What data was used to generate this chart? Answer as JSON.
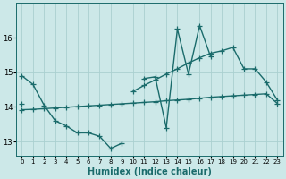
{
  "xlabel": "Humidex (Indice chaleur)",
  "ylabel": "",
  "xlim": [
    -0.5,
    23.5
  ],
  "ylim": [
    12.6,
    17.0
  ],
  "yticks": [
    13,
    14,
    15,
    16
  ],
  "xticks": [
    0,
    1,
    2,
    3,
    4,
    5,
    6,
    7,
    8,
    9,
    10,
    11,
    12,
    13,
    14,
    15,
    16,
    17,
    18,
    19,
    20,
    21,
    22,
    23
  ],
  "bg_color": "#cce8e8",
  "grid_color": "#aad0d0",
  "line_color": "#1a6b6b",
  "x_all": [
    0,
    1,
    2,
    3,
    4,
    5,
    6,
    7,
    8,
    9,
    10,
    11,
    12,
    13,
    14,
    15,
    16,
    17,
    18,
    19,
    20,
    21,
    22,
    23
  ],
  "y_main": [
    14.9,
    14.65,
    14.05,
    13.6,
    13.45,
    13.25,
    13.25,
    13.15,
    12.8,
    12.95,
    null,
    14.82,
    14.87,
    13.4,
    16.25,
    14.95,
    16.35,
    15.45,
    null,
    null,
    null,
    null,
    null,
    null
  ],
  "y_upper": [
    14.1,
    null,
    null,
    null,
    null,
    null,
    null,
    null,
    null,
    null,
    14.45,
    14.62,
    14.78,
    14.95,
    15.1,
    15.27,
    15.42,
    15.55,
    15.62,
    15.72,
    15.1,
    15.1,
    14.72,
    14.2
  ],
  "y_lower": [
    13.92,
    13.93,
    13.95,
    13.97,
    13.99,
    14.01,
    14.03,
    14.05,
    14.07,
    14.09,
    14.11,
    14.13,
    14.15,
    14.18,
    14.2,
    14.22,
    14.25,
    14.28,
    14.3,
    14.32,
    14.34,
    14.36,
    14.38,
    14.1
  ],
  "marker_size": 4,
  "linewidth": 1.0
}
